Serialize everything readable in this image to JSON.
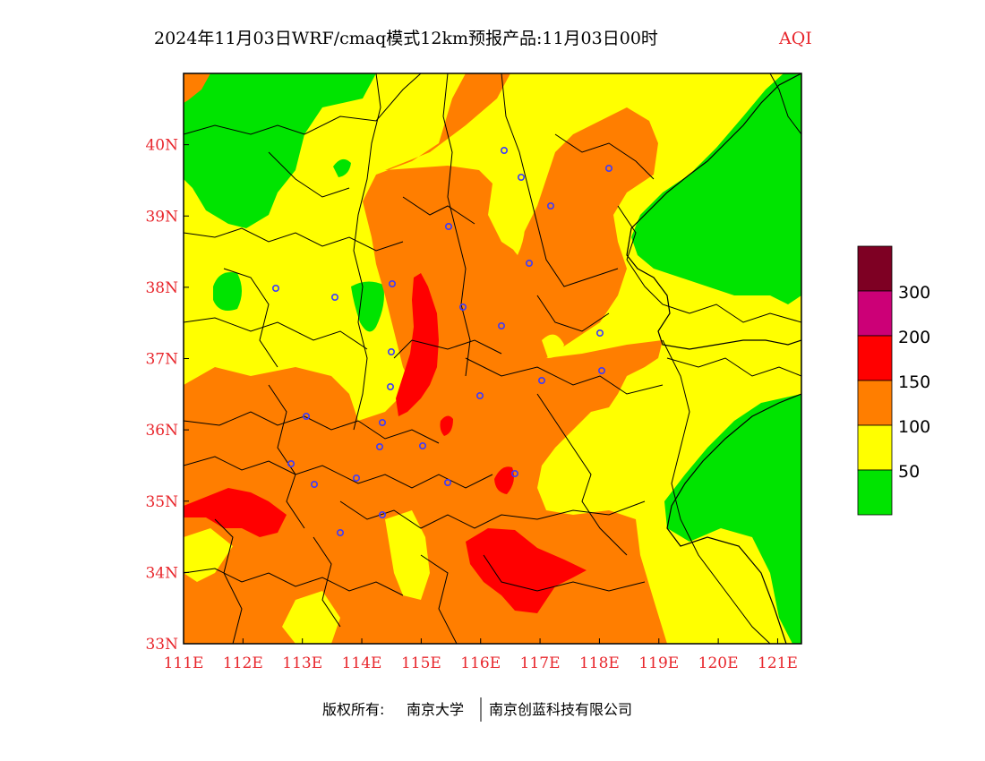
{
  "title": {
    "main": "2024年11月03日WRF/cmaq模式12km预报产品:11月03日00时",
    "suffix": "AQI"
  },
  "map": {
    "x_range": [
      111,
      121.4
    ],
    "y_range": [
      33,
      41
    ],
    "x_ticks": [
      {
        "value": 111,
        "label": "111E"
      },
      {
        "value": 112,
        "label": "112E"
      },
      {
        "value": 113,
        "label": "113E"
      },
      {
        "value": 114,
        "label": "114E"
      },
      {
        "value": 115,
        "label": "115E"
      },
      {
        "value": 116,
        "label": "116E"
      },
      {
        "value": 117,
        "label": "117E"
      },
      {
        "value": 118,
        "label": "118E"
      },
      {
        "value": 119,
        "label": "119E"
      },
      {
        "value": 120,
        "label": "120E"
      },
      {
        "value": 121,
        "label": "121E"
      }
    ],
    "y_ticks": [
      {
        "value": 40,
        "label": "40N"
      },
      {
        "value": 39,
        "label": "39N"
      },
      {
        "value": 38,
        "label": "38N"
      },
      {
        "value": 37,
        "label": "37N"
      },
      {
        "value": 36,
        "label": "36N"
      },
      {
        "value": 35,
        "label": "35N"
      },
      {
        "value": 34,
        "label": "34N"
      },
      {
        "value": 33,
        "label": "33N"
      }
    ],
    "aqi_levels": [
      {
        "range": "0-50",
        "color": "#00e400"
      },
      {
        "range": "50-100",
        "color": "#ffff00"
      },
      {
        "range": "100-150",
        "color": "#ff7e00"
      },
      {
        "range": "150-200",
        "color": "#ff0000"
      },
      {
        "range": "200-300",
        "color": "#cc0077"
      },
      {
        "range": "300+",
        "color": "#7e0023"
      }
    ],
    "station_marker_color": "#3b3bff"
  },
  "legend": {
    "labels": [
      "50",
      "100",
      "150",
      "200",
      "300"
    ]
  },
  "footer": {
    "copyright_label": "版权所有:",
    "owner_1": "南京大学",
    "owner_2": "南京创蓝科技有限公司"
  }
}
